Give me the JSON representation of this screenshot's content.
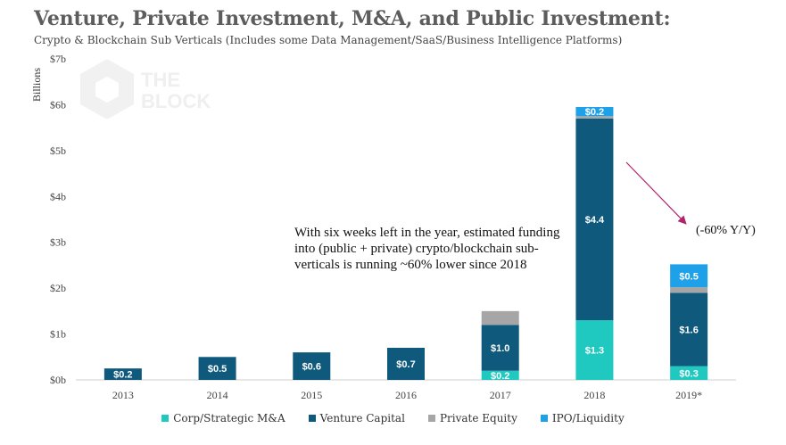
{
  "header": {
    "title": "Venture, Private Investment, M&A, and Public Investment:",
    "subtitle": "Crypto & Blockchain Sub Verticals (Includes some Data Management/SaaS/Business Intelligence Platforms)"
  },
  "watermark": {
    "line1": "THE",
    "line2": "BLOCK"
  },
  "annotation": {
    "note": "With six weeks left in the year, estimated funding into (public + private) crypto/blockchain sub-verticals is running ~60% lower since 2018",
    "yoy": "(-60% Y/Y)"
  },
  "colors": {
    "corp_ma": "#1fc9c0",
    "venture": "#0f5a7c",
    "private_equity": "#a6a6a6",
    "ipo": "#1ea1e8",
    "arrow": "#b0246a"
  },
  "chart_data": {
    "type": "bar",
    "stacked": true,
    "ylabel": "Billions",
    "ylim": [
      0,
      7
    ],
    "yticks": [
      "$0b",
      "$1b",
      "$2b",
      "$3b",
      "$4b",
      "$5b",
      "$6b",
      "$7b"
    ],
    "categories": [
      "2013",
      "2014",
      "2015",
      "2016",
      "2017",
      "2018",
      "2019*"
    ],
    "series": [
      {
        "name": "Corp/Strategic M&A",
        "values": [
          0,
          0,
          0,
          0,
          0.2,
          1.3,
          0.3
        ],
        "labels": [
          "",
          "",
          "",
          "",
          "$0.2",
          "$1.3",
          "$0.3"
        ]
      },
      {
        "name": "Venture Capital",
        "values": [
          0.25,
          0.5,
          0.6,
          0.7,
          1.0,
          4.4,
          1.6
        ],
        "labels": [
          "$0.2",
          "$0.5",
          "$0.6",
          "$0.7",
          "$1.0",
          "$4.4",
          "$1.6"
        ]
      },
      {
        "name": "Private Equity",
        "values": [
          0,
          0,
          0,
          0,
          0.3,
          0.05,
          0.12
        ],
        "labels": [
          "",
          "",
          "",
          "",
          "",
          "",
          ""
        ]
      },
      {
        "name": "IPO/Liquidity",
        "values": [
          0,
          0,
          0,
          0,
          0,
          0.2,
          0.5
        ],
        "labels": [
          "",
          "",
          "",
          "",
          "",
          "$0.2",
          "$0.5"
        ]
      }
    ],
    "legend_position": "bottom",
    "grid": false
  }
}
